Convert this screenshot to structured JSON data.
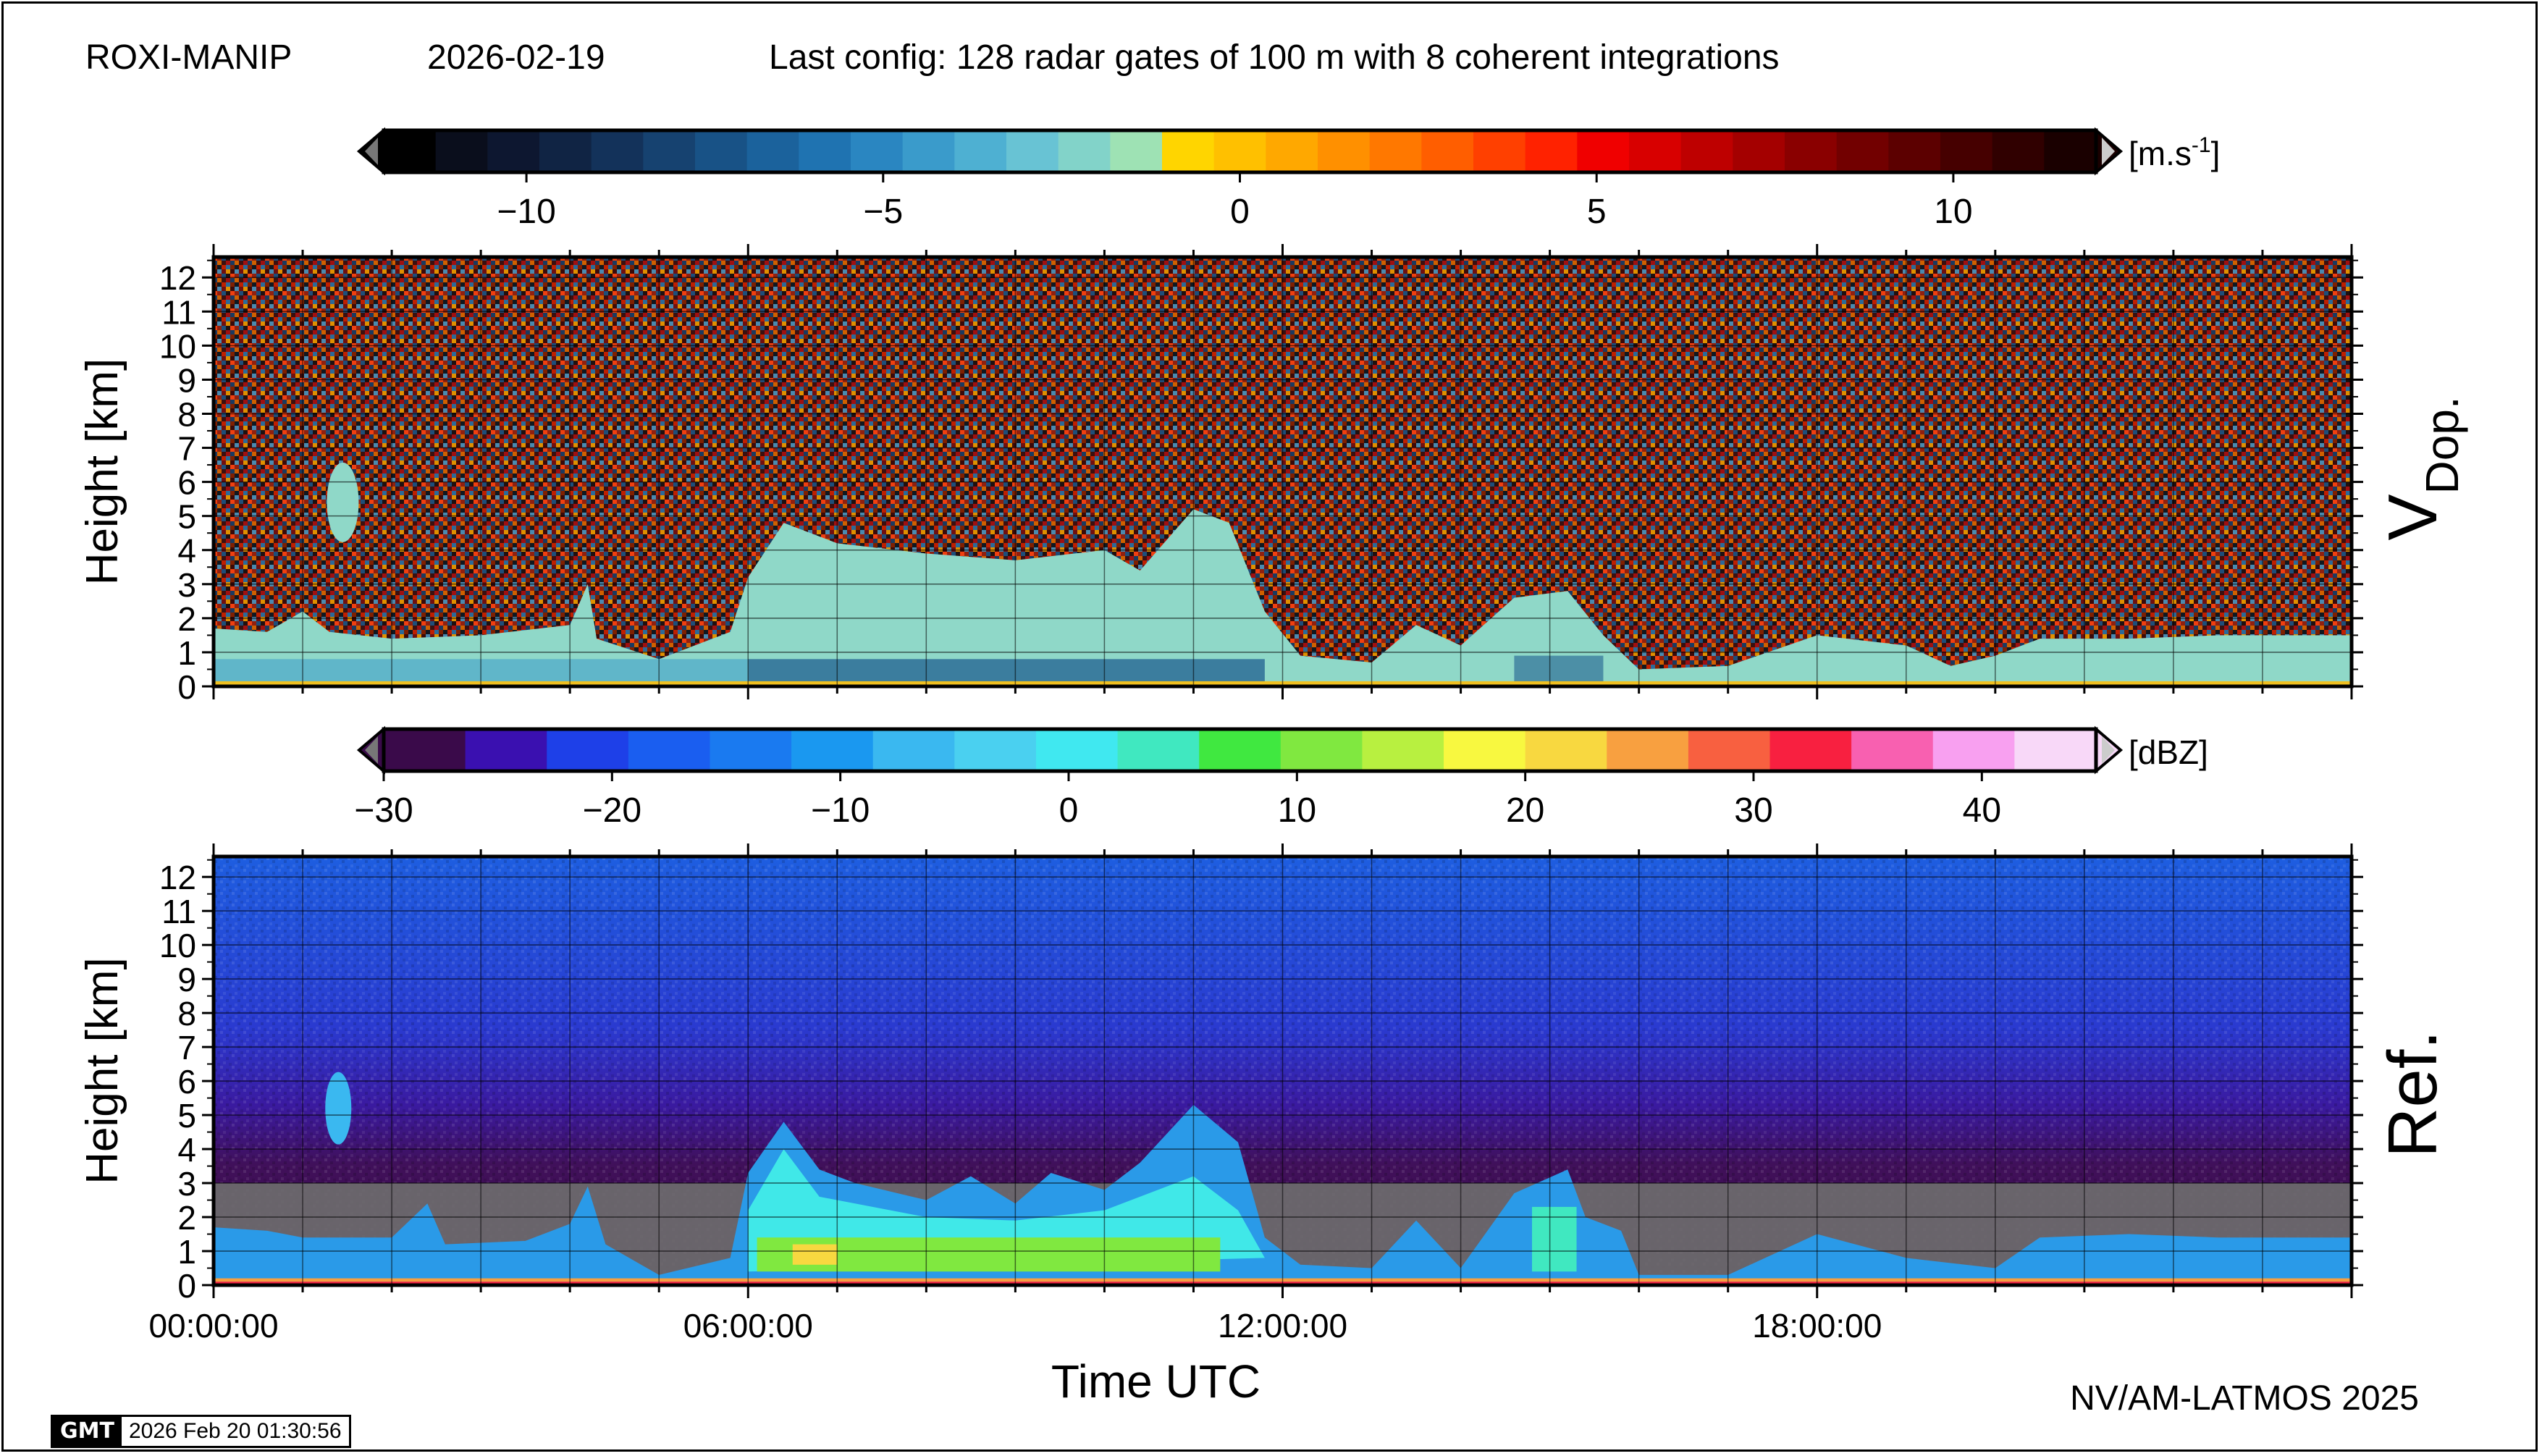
{
  "header": {
    "station": "ROXI-MANIP",
    "date": "2026-02-19",
    "config": "Last config: 128 radar gates of 100 m with 8 coherent integrations"
  },
  "footer": {
    "credit": "NV/AM-LATMOS 2025",
    "gmt_logo": "GMT",
    "timestamp": "2026 Feb 20 01:30:56"
  },
  "chart_data": [
    {
      "type": "heatmap",
      "panel": "top",
      "side_label_main": "V",
      "side_label_sub": "Dop.",
      "ylabel": "Height [km]",
      "xlabel": "",
      "ylim": [
        0,
        12.6
      ],
      "xlim": [
        0,
        24
      ],
      "yticks": [
        0,
        1,
        2,
        3,
        4,
        5,
        6,
        7,
        8,
        9,
        10,
        11,
        12
      ],
      "colorbar": {
        "unit_main": "[m.s",
        "unit_sup": "-1",
        "unit_end": "]",
        "range": [
          -12,
          12
        ],
        "ticks": [
          "−10",
          "−5",
          "0",
          "5",
          "10"
        ],
        "tick_values": [
          -10,
          -5,
          0,
          5,
          10
        ],
        "colors": [
          "#000000",
          "#0a0e1c",
          "#0d1730",
          "#102444",
          "#13325a",
          "#164270",
          "#185286",
          "#1b629c",
          "#1f73b1",
          "#2a86c1",
          "#3a9bcb",
          "#4eb0d2",
          "#68c3d4",
          "#82d3c9",
          "#9ee2b4",
          "#ffd500",
          "#ffc000",
          "#ffa800",
          "#ff9000",
          "#ff7800",
          "#ff5e00",
          "#ff4000",
          "#ff2200",
          "#f00000",
          "#d80000",
          "#be0000",
          "#a40000",
          "#8a0000",
          "#720000",
          "#5c0000",
          "#460000",
          "#300000",
          "#1a0000"
        ]
      }
    },
    {
      "type": "heatmap",
      "panel": "bottom",
      "side_label_main": "Ref.",
      "ylabel": "Height [km]",
      "xlabel": "Time UTC",
      "ylim": [
        0,
        12.6
      ],
      "xlim": [
        0,
        24
      ],
      "yticks": [
        0,
        1,
        2,
        3,
        4,
        5,
        6,
        7,
        8,
        9,
        10,
        11,
        12
      ],
      "xticks": [
        0,
        6,
        12,
        18
      ],
      "xtick_labels": [
        "00:00:00",
        "06:00:00",
        "12:00:00",
        "18:00:00"
      ],
      "colorbar": {
        "unit_main": "[dBZ]",
        "range": [
          -30,
          45
        ],
        "ticks": [
          "−30",
          "−20",
          "−10",
          "0",
          "10",
          "20",
          "30",
          "40"
        ],
        "tick_values": [
          -30,
          -20,
          -10,
          0,
          10,
          20,
          30,
          40
        ],
        "colors": [
          "#3a0a4a",
          "#3a10b0",
          "#1e40e8",
          "#1a5ef0",
          "#1a7af0",
          "#1a98f0",
          "#3ab8f0",
          "#4ad0f0",
          "#40e8f0",
          "#40e8c0",
          "#40e840",
          "#80e840",
          "#b8f040",
          "#f8f840",
          "#f8d840",
          "#f8a040",
          "#f86040",
          "#f82040",
          "#f860b0",
          "#f8a0f0",
          "#f8d8f8"
        ]
      }
    }
  ]
}
